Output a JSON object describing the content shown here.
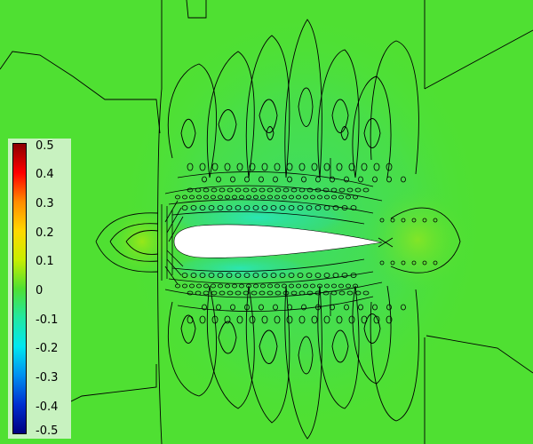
{
  "colorbar": {
    "labels": [
      "0.5",
      "0.4",
      "0.3",
      "0.2",
      "0.1",
      "0",
      "-0.1",
      "-0.2",
      "-0.3",
      "-0.4",
      "-0.5"
    ],
    "colors": [
      "#8b0000",
      "#ff0000",
      "#ff8c00",
      "#ffd800",
      "#c8ee00",
      "#4fe032",
      "#22e8a0",
      "#00e8f0",
      "#0090f0",
      "#0030d0",
      "#000080"
    ]
  },
  "colors": {
    "background": "#4fe032",
    "contour_line": "#000000",
    "airfoil": "#ffffff",
    "colorbar_panel": "#c8f2c0"
  }
}
